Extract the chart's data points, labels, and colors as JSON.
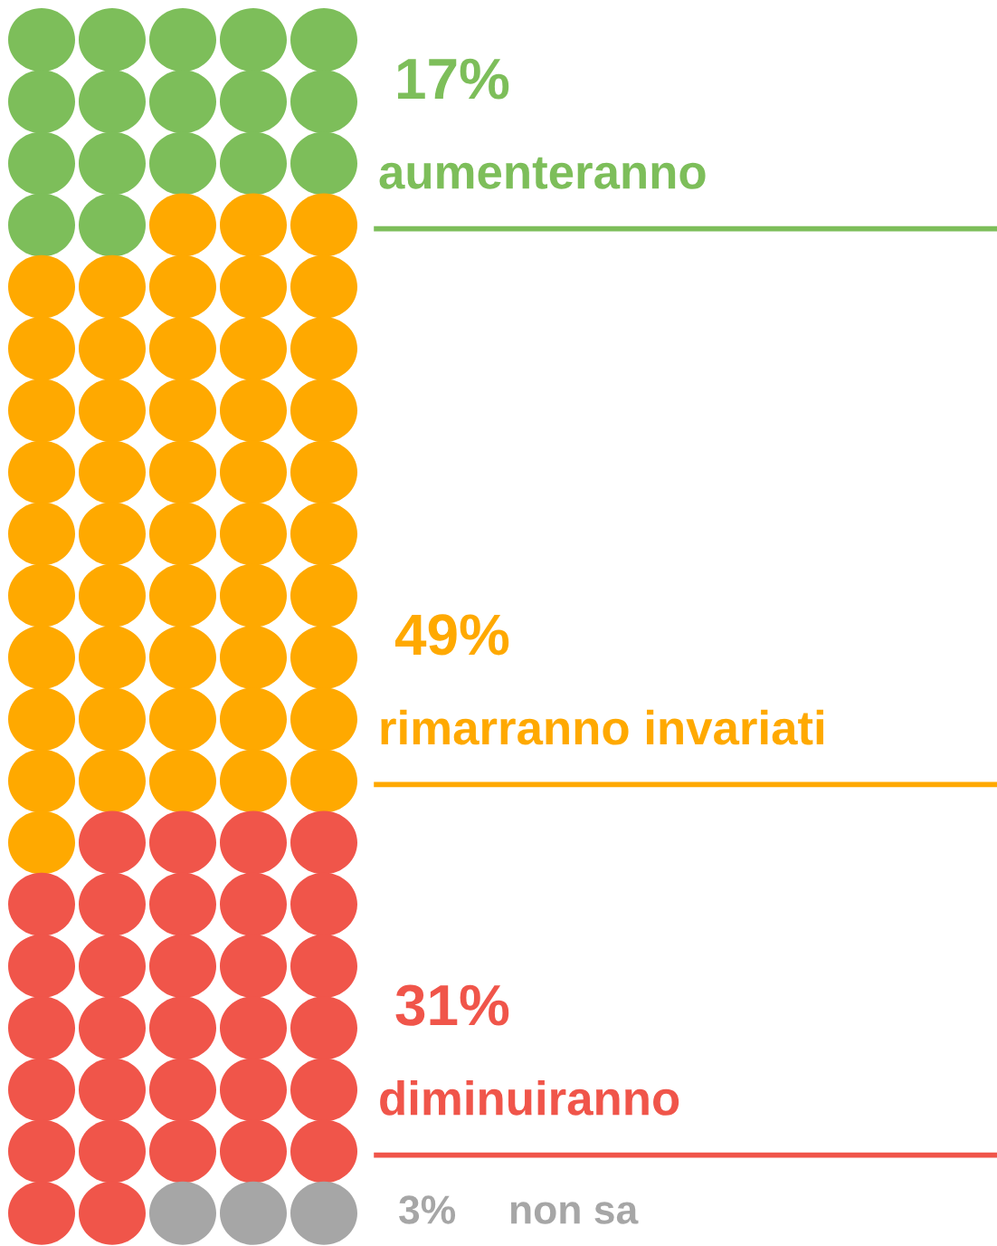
{
  "chart_data": {
    "type": "other",
    "categories": [
      "aumenteranno",
      "rimarranno invariati",
      "diminuiranno",
      "non sa"
    ],
    "values": [
      17,
      49,
      31,
      3
    ],
    "value_labels": [
      "17%",
      "49%",
      "31%",
      "3%"
    ],
    "colors": [
      "#7dbe5a",
      "#ffa900",
      "#f0554a",
      "#a6a6a6"
    ]
  }
}
